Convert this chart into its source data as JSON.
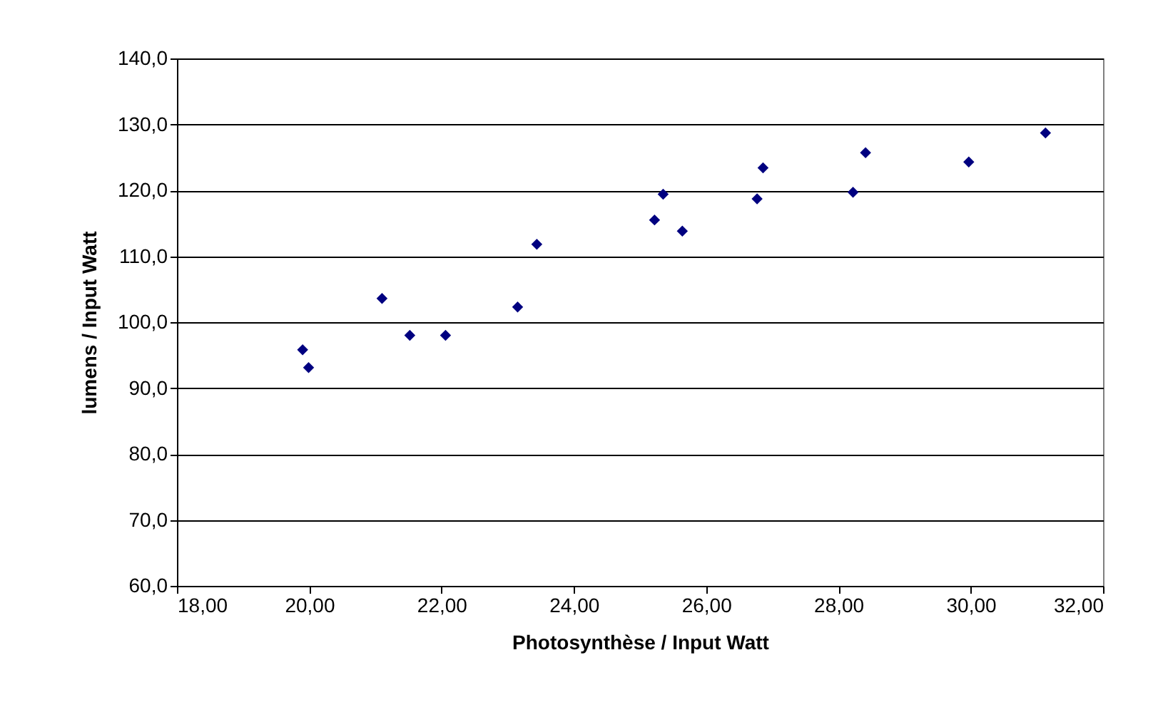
{
  "chart_data": {
    "type": "scatter",
    "xlabel": "Photosynthèse / Input Watt",
    "ylabel": "lumens / Input Watt",
    "x": [
      19.9,
      19.99,
      21.1,
      21.52,
      22.06,
      23.15,
      23.44,
      25.22,
      25.35,
      25.64,
      26.77,
      26.86,
      28.22,
      28.41,
      29.97,
      31.13
    ],
    "values": [
      95.8,
      93.1,
      103.6,
      98.0,
      98.0,
      102.3,
      111.8,
      115.5,
      119.4,
      113.8,
      118.7,
      123.4,
      119.7,
      125.7,
      124.3,
      128.7
    ],
    "color": "#000080",
    "marker": "diamond",
    "grid": "y",
    "xlim": [
      18,
      32
    ],
    "ylim": [
      60,
      140
    ],
    "xticks": [
      {
        "value": 18,
        "label": "18,00"
      },
      {
        "value": 20,
        "label": "20,00"
      },
      {
        "value": 22,
        "label": "22,00"
      },
      {
        "value": 24,
        "label": "24,00"
      },
      {
        "value": 26,
        "label": "26,00"
      },
      {
        "value": 28,
        "label": "28,00"
      },
      {
        "value": 30,
        "label": "30,00"
      },
      {
        "value": 32,
        "label": "32,00"
      }
    ],
    "yticks": [
      {
        "value": 60,
        "label": "60,0"
      },
      {
        "value": 70,
        "label": "70,0"
      },
      {
        "value": 80,
        "label": "80,0"
      },
      {
        "value": 90,
        "label": "90,0"
      },
      {
        "value": 100,
        "label": "100,0"
      },
      {
        "value": 110,
        "label": "110,0"
      },
      {
        "value": 120,
        "label": "120,0"
      },
      {
        "value": 130,
        "label": "130,0"
      },
      {
        "value": 140,
        "label": "140,0"
      }
    ]
  }
}
